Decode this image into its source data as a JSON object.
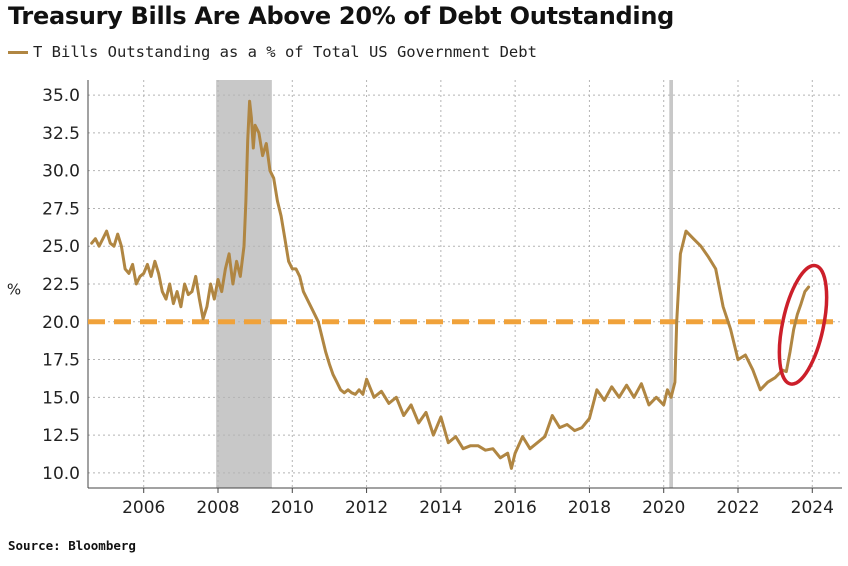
{
  "chart_data": {
    "type": "line",
    "title": "Treasury Bills Are Above 20% of Debt Outstanding",
    "ylabel": "%",
    "xlabel": "",
    "source": "Source: Bloomberg",
    "xlim": [
      2004.5,
      2024.8
    ],
    "ylim": [
      9.0,
      36.0
    ],
    "grid": true,
    "legend_position": "top-left",
    "yticks": [
      "35.0",
      "32.5",
      "30.0",
      "27.5",
      "25.0",
      "22.5",
      "20.0",
      "17.5",
      "15.0",
      "12.5",
      "10.0"
    ],
    "ytick_values": [
      35.0,
      32.5,
      30.0,
      27.5,
      25.0,
      22.5,
      20.0,
      17.5,
      15.0,
      12.5,
      10.0
    ],
    "xticks": [
      "2006",
      "2008",
      "2010",
      "2012",
      "2014",
      "2016",
      "2018",
      "2020",
      "2022",
      "2024"
    ],
    "xtick_values": [
      2006,
      2008,
      2010,
      2012,
      2014,
      2016,
      2018,
      2020,
      2022,
      2024
    ],
    "series": [
      {
        "name": "T Bills Outstanding as a % of Total US Government Debt",
        "color": "#b08642",
        "x": [
          2004.6,
          2004.7,
          2004.8,
          2004.9,
          2005.0,
          2005.1,
          2005.2,
          2005.3,
          2005.4,
          2005.5,
          2005.6,
          2005.7,
          2005.8,
          2005.9,
          2006.0,
          2006.1,
          2006.2,
          2006.3,
          2006.4,
          2006.5,
          2006.6,
          2006.7,
          2006.8,
          2006.9,
          2007.0,
          2007.1,
          2007.2,
          2007.3,
          2007.4,
          2007.5,
          2007.6,
          2007.7,
          2007.8,
          2007.9,
          2008.0,
          2008.1,
          2008.2,
          2008.3,
          2008.4,
          2008.5,
          2008.6,
          2008.7,
          2008.75,
          2008.8,
          2008.85,
          2008.9,
          2008.95,
          2009.0,
          2009.1,
          2009.2,
          2009.3,
          2009.4,
          2009.5,
          2009.6,
          2009.7,
          2009.8,
          2009.9,
          2010.0,
          2010.1,
          2010.2,
          2010.3,
          2010.4,
          2010.5,
          2010.6,
          2010.7,
          2010.8,
          2010.9,
          2011.0,
          2011.1,
          2011.2,
          2011.3,
          2011.4,
          2011.5,
          2011.6,
          2011.7,
          2011.8,
          2011.9,
          2012.0,
          2012.2,
          2012.4,
          2012.6,
          2012.8,
          2013.0,
          2013.2,
          2013.4,
          2013.6,
          2013.8,
          2014.0,
          2014.2,
          2014.4,
          2014.6,
          2014.8,
          2015.0,
          2015.2,
          2015.4,
          2015.6,
          2015.8,
          2015.9,
          2016.0,
          2016.2,
          2016.4,
          2016.6,
          2016.8,
          2017.0,
          2017.2,
          2017.4,
          2017.6,
          2017.8,
          2018.0,
          2018.2,
          2018.4,
          2018.6,
          2018.8,
          2019.0,
          2019.2,
          2019.4,
          2019.6,
          2019.8,
          2020.0,
          2020.1,
          2020.2,
          2020.3,
          2020.35,
          2020.45,
          2020.6,
          2020.8,
          2021.0,
          2021.2,
          2021.4,
          2021.6,
          2021.8,
          2022.0,
          2022.2,
          2022.4,
          2022.6,
          2022.8,
          2023.0,
          2023.2,
          2023.3,
          2023.4,
          2023.5,
          2023.6,
          2023.7,
          2023.8,
          2023.9
        ],
        "values": [
          25.2,
          25.5,
          25.0,
          25.5,
          26.0,
          25.2,
          25.0,
          25.8,
          25.0,
          23.5,
          23.2,
          23.8,
          22.5,
          23.0,
          23.2,
          23.8,
          23.0,
          24.0,
          23.2,
          22.0,
          21.5,
          22.5,
          21.2,
          22.0,
          21.0,
          22.5,
          21.8,
          22.0,
          23.0,
          21.5,
          20.2,
          21.0,
          22.5,
          21.5,
          22.8,
          22.0,
          23.5,
          24.5,
          22.5,
          24.0,
          23.0,
          25.0,
          28.0,
          32.0,
          34.6,
          33.5,
          31.5,
          33.0,
          32.5,
          31.0,
          31.8,
          30.0,
          29.5,
          28.0,
          27.0,
          25.5,
          24.0,
          23.5,
          23.5,
          23.0,
          22.0,
          21.5,
          21.0,
          20.5,
          20.0,
          19.0,
          18.0,
          17.2,
          16.5,
          16.0,
          15.5,
          15.3,
          15.5,
          15.3,
          15.2,
          15.5,
          15.2,
          16.2,
          15.0,
          15.4,
          14.6,
          15.0,
          13.8,
          14.5,
          13.3,
          14.0,
          12.5,
          13.7,
          12.0,
          12.4,
          11.6,
          11.8,
          11.8,
          11.5,
          11.6,
          11.0,
          11.3,
          10.3,
          11.3,
          12.4,
          11.6,
          12.0,
          12.4,
          13.8,
          13.0,
          13.2,
          12.8,
          13.0,
          13.6,
          15.5,
          14.8,
          15.7,
          15.0,
          15.8,
          15.0,
          15.9,
          14.5,
          15.0,
          14.5,
          15.5,
          15.0,
          16.0,
          20.0,
          24.5,
          26.0,
          25.5,
          25.0,
          24.3,
          23.5,
          21.0,
          19.5,
          17.5,
          17.8,
          16.8,
          15.5,
          16.0,
          16.3,
          16.8,
          16.7,
          18.0,
          19.5,
          20.5,
          21.2,
          22.0,
          22.3
        ]
      }
    ],
    "reference_lines": [
      {
        "y": 20.0,
        "color": "#f0a23a",
        "style": "dashed"
      }
    ],
    "shaded_regions": [
      {
        "x0": 2007.95,
        "x1": 2009.45,
        "color": "#c8c8c8"
      },
      {
        "x0": 2020.15,
        "x1": 2020.25,
        "color": "#c8c8c8"
      }
    ],
    "highlight_ellipse": {
      "cx": 2023.75,
      "cy": 19.8,
      "rx": 0.55,
      "ry": 4.0,
      "color": "#cc1f2a"
    }
  }
}
